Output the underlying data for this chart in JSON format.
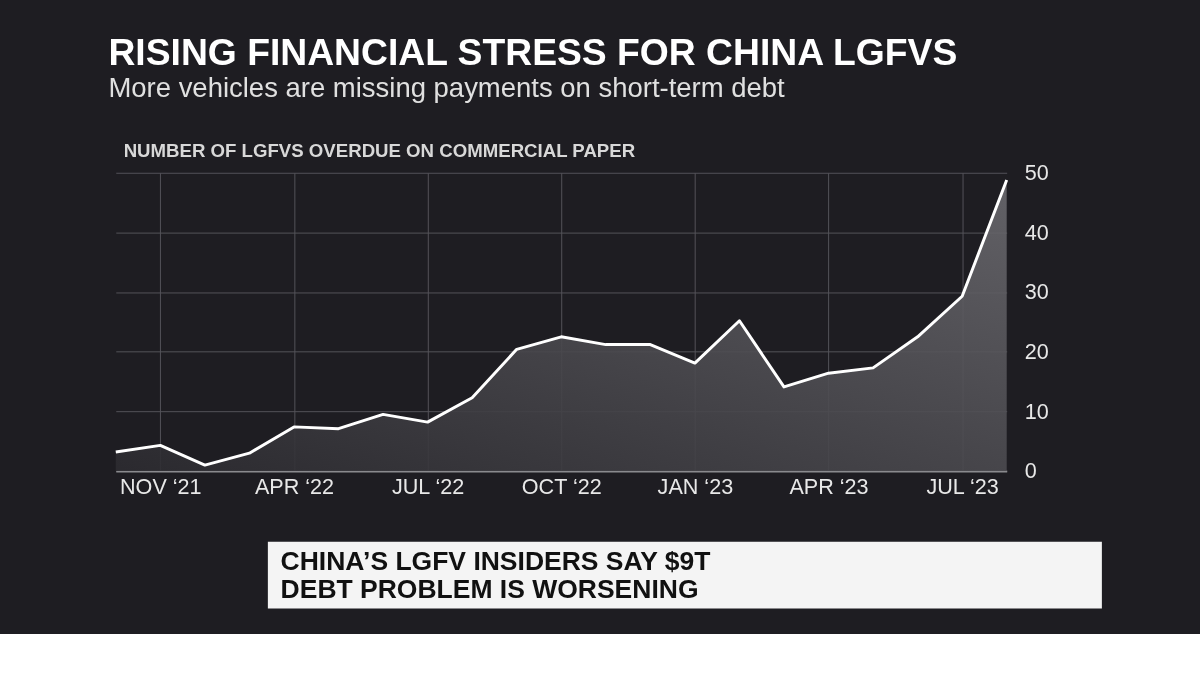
{
  "chart_data": {
    "type": "area",
    "title": "RISING FINANCIAL STRESS FOR CHINA LGFVS",
    "subtitle": "More vehicles are missing payments on short-term debt",
    "ylabel": "NUMBER OF LGFVS OVERDUE ON COMMERCIAL PAPER",
    "categories": [
      null,
      "NOV ‘21",
      null,
      null,
      "APR ‘22",
      null,
      null,
      "JUL ‘22",
      null,
      null,
      "OCT ‘22",
      null,
      null,
      "JAN ‘23",
      null,
      null,
      "APR ‘23",
      null,
      null,
      "JUL ‘23",
      null
    ],
    "series": [
      {
        "color": "#ffffff",
        "values": [
          3.2,
          4.3,
          1.0,
          3.0,
          7.4,
          7.1,
          9.5,
          8.2,
          12.3,
          20.4,
          22.5,
          21.2,
          21.2,
          18.1,
          25.2,
          14.1,
          16.4,
          17.3,
          22.5,
          29.3,
          48.8
        ]
      }
    ],
    "ylim": [
      0,
      50
    ],
    "yticks": [
      0,
      10,
      20,
      30,
      40,
      50
    ],
    "grid": true,
    "annotations": [
      "CHINA’S LGFV INSIDERS SAY $9T\nDEBT PROBLEM IS WORSENING"
    ]
  }
}
